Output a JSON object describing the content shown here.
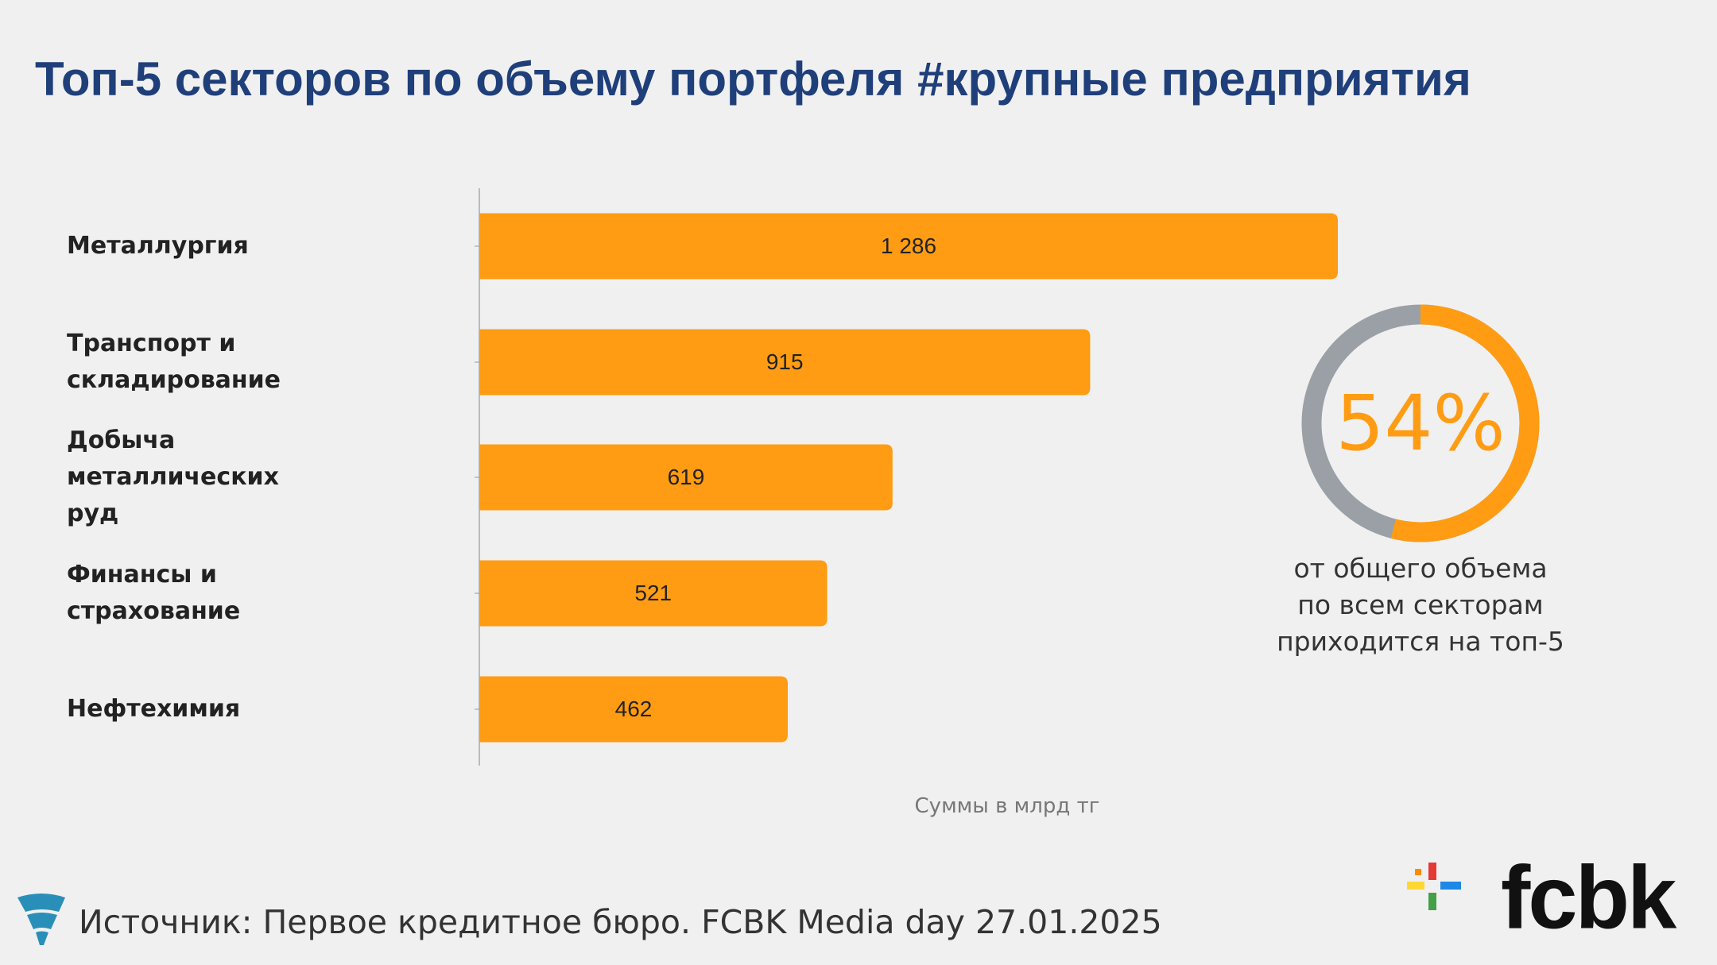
{
  "chart_data": {
    "type": "bar",
    "orientation": "horizontal",
    "title": "Топ-5 секторов по объему портфеля #крупные предприятия",
    "categories": [
      "Металлургия",
      "Транспорт и складирование",
      "Добыча металлических руд",
      "Финансы и страхование",
      "Нефтехимия"
    ],
    "values": [
      1286,
      915,
      619,
      521,
      462
    ],
    "value_labels": [
      "1 286",
      "915",
      "619",
      "521",
      "462"
    ],
    "color": "#ff9c13",
    "note": "Суммы в млрд тг"
  },
  "donut": {
    "value": 54,
    "label": "54%",
    "caption": "от общего объема по всем секторам приходится на топ-5",
    "color": "#ff9c13",
    "rest_color": "#9aa0a6"
  },
  "footer": {
    "source": "Источник: Первое кредитное бюро. FCBK Media day 27.01.2025",
    "logo": "fcbk"
  }
}
